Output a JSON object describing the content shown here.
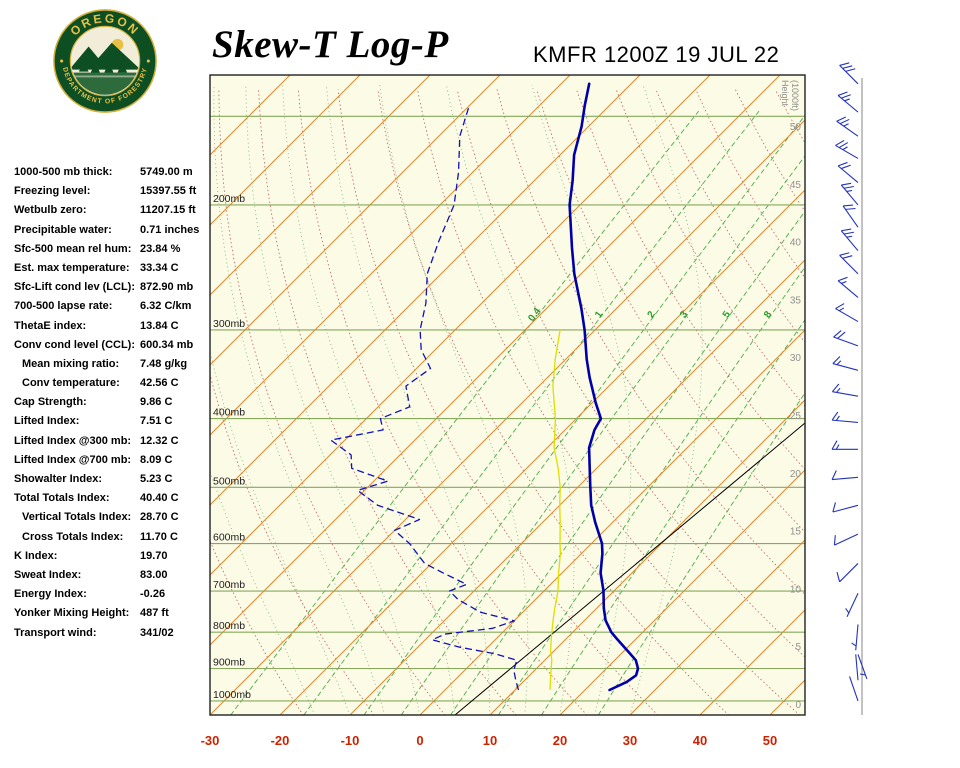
{
  "header": {
    "title": "Skew-T Log-P",
    "station_line": "KMFR 1200Z 19 JUL 22",
    "logo": {
      "top_text": "OREGON",
      "bottom_text": "DEPARTMENT OF FORESTRY"
    }
  },
  "stats": [
    {
      "label": "1000-500 mb thick:",
      "value": "5749.00 m",
      "indent": false
    },
    {
      "label": "Freezing level:",
      "value": "15397.55 ft",
      "indent": false
    },
    {
      "label": "Wetbulb zero:",
      "value": "11207.15 ft",
      "indent": false
    },
    {
      "label": "Precipitable water:",
      "value": "0.71 inches",
      "indent": false
    },
    {
      "label": "Sfc-500 mean rel hum:",
      "value": "23.84 %",
      "indent": false
    },
    {
      "label": "Est. max temperature:",
      "value": "33.34 C",
      "indent": false
    },
    {
      "label": "Sfc-Lift cond lev (LCL):",
      "value": "872.90 mb",
      "indent": false
    },
    {
      "label": "700-500 lapse rate:",
      "value": "6.32 C/km",
      "indent": false
    },
    {
      "label": "ThetaE index:",
      "value": "13.84 C",
      "indent": false
    },
    {
      "label": "Conv cond level (CCL):",
      "value": "600.34 mb",
      "indent": false
    },
    {
      "label": "Mean mixing ratio:",
      "value": "7.48 g/kg",
      "indent": true
    },
    {
      "label": "Conv temperature:",
      "value": "42.56 C",
      "indent": true
    },
    {
      "label": "Cap Strength:",
      "value": "9.86 C",
      "indent": false
    },
    {
      "label": "Lifted Index:",
      "value": "7.51 C",
      "indent": false
    },
    {
      "label": "Lifted Index @300 mb:",
      "value": "12.32 C",
      "indent": false
    },
    {
      "label": "Lifted Index @700 mb:",
      "value": "8.09 C",
      "indent": false
    },
    {
      "label": "Showalter Index:",
      "value": "5.23 C",
      "indent": false
    },
    {
      "label": "Total Totals Index:",
      "value": "40.40 C",
      "indent": false
    },
    {
      "label": "Vertical Totals Index:",
      "value": "28.70 C",
      "indent": true
    },
    {
      "label": "Cross Totals Index:",
      "value": "11.70 C",
      "indent": true
    },
    {
      "label": "K Index:",
      "value": "19.70",
      "indent": false
    },
    {
      "label": "Sweat Index:",
      "value": "83.00",
      "indent": false
    },
    {
      "label": "Energy Index:",
      "value": "-0.26",
      "indent": false
    },
    {
      "label": "Yonker Mixing Height:",
      "value": "487 ft",
      "indent": false
    },
    {
      "label": "Transport wind:",
      "value": "341/02",
      "indent": false
    }
  ],
  "chart_data": {
    "type": "skewt-log-p",
    "title": "Skew-T Log-P sounding KMFR 1200Z 19 JUL 22",
    "pressure_labels": [
      {
        "p": 200,
        "label": "200mb"
      },
      {
        "p": 300,
        "label": "300mb"
      },
      {
        "p": 400,
        "label": "400mb"
      },
      {
        "p": 500,
        "label": "500mb"
      },
      {
        "p": 600,
        "label": "600mb"
      },
      {
        "p": 700,
        "label": "700mb"
      },
      {
        "p": 800,
        "label": "800mb"
      },
      {
        "p": 900,
        "label": "900mb"
      },
      {
        "p": 1000,
        "label": "1000mb"
      }
    ],
    "pressure_lines_mb": [
      150,
      200,
      300,
      400,
      500,
      600,
      700,
      800,
      900,
      1000
    ],
    "temp_axis_labels_c": [
      -30,
      -20,
      -10,
      0,
      10,
      20,
      30,
      40,
      50
    ],
    "isotherm_range_c": [
      -110,
      50
    ],
    "isotherm_step_c": 10,
    "dry_adiabats_theta_c": [
      -20,
      -10,
      0,
      10,
      20,
      30,
      40,
      50,
      60,
      70,
      80,
      90,
      100,
      110,
      120,
      130,
      140,
      150,
      160,
      170,
      180
    ],
    "moist_adiabats_c": [
      -15,
      -10,
      -5,
      0,
      5,
      10,
      15,
      20,
      25,
      30
    ],
    "mixing_ratio_lines_gkg": [
      0.4,
      1,
      2,
      3,
      5,
      8,
      12,
      20
    ],
    "mixing_ratio_labels_gkg": [
      "0.4",
      "1",
      "2",
      "3",
      "5",
      "8"
    ],
    "height_axis_title_1": "Height",
    "height_axis_title_2": "(1000ft)",
    "height_labels_kft": [
      50,
      45,
      40,
      35,
      30,
      25,
      20,
      15,
      10,
      5,
      0
    ],
    "temperature_profile": [
      {
        "p": 965,
        "t": 23.5
      },
      {
        "p": 940,
        "t": 24.8
      },
      {
        "p": 920,
        "t": 25.2
      },
      {
        "p": 900,
        "t": 24.5
      },
      {
        "p": 876,
        "t": 23.0
      },
      {
        "p": 850,
        "t": 20.5
      },
      {
        "p": 820,
        "t": 17.5
      },
      {
        "p": 800,
        "t": 15.5
      },
      {
        "p": 770,
        "t": 13.0
      },
      {
        "p": 740,
        "t": 11.0
      },
      {
        "p": 700,
        "t": 8.5
      },
      {
        "p": 660,
        "t": 5.5
      },
      {
        "p": 620,
        "t": 3.0
      },
      {
        "p": 600,
        "t": 1.5
      },
      {
        "p": 560,
        "t": -2.5
      },
      {
        "p": 530,
        "t": -5.5
      },
      {
        "p": 500,
        "t": -8.2
      },
      {
        "p": 470,
        "t": -11.0
      },
      {
        "p": 440,
        "t": -14.0
      },
      {
        "p": 415,
        "t": -15.8
      },
      {
        "p": 400,
        "t": -16.5
      },
      {
        "p": 380,
        "t": -19.5
      },
      {
        "p": 350,
        "t": -24.0
      },
      {
        "p": 330,
        "t": -27.0
      },
      {
        "p": 300,
        "t": -31.5
      },
      {
        "p": 280,
        "t": -35.0
      },
      {
        "p": 250,
        "t": -41.0
      },
      {
        "p": 230,
        "t": -45.0
      },
      {
        "p": 200,
        "t": -51.5
      },
      {
        "p": 185,
        "t": -54.5
      },
      {
        "p": 170,
        "t": -58.0
      },
      {
        "p": 155,
        "t": -61.0
      },
      {
        "p": 145,
        "t": -63.5
      },
      {
        "p": 135,
        "t": -66.0
      }
    ],
    "dewpoint_profile": [
      {
        "p": 965,
        "t": 10.5
      },
      {
        "p": 940,
        "t": 9.0
      },
      {
        "p": 905,
        "t": 7.0
      },
      {
        "p": 876,
        "t": 6.0
      },
      {
        "p": 858,
        "t": 2.0
      },
      {
        "p": 840,
        "t": -4.0
      },
      {
        "p": 820,
        "t": -9.0
      },
      {
        "p": 805,
        "t": -8.0
      },
      {
        "p": 790,
        "t": -2.0
      },
      {
        "p": 771,
        "t": 0.0
      },
      {
        "p": 750,
        "t": -6.0
      },
      {
        "p": 720,
        "t": -11.0
      },
      {
        "p": 700,
        "t": -13.5
      },
      {
        "p": 685,
        "t": -12.0
      },
      {
        "p": 660,
        "t": -17.0
      },
      {
        "p": 640,
        "t": -21.0
      },
      {
        "p": 600,
        "t": -26.0
      },
      {
        "p": 575,
        "t": -30.0
      },
      {
        "p": 555,
        "t": -28.0
      },
      {
        "p": 530,
        "t": -36.0
      },
      {
        "p": 505,
        "t": -41.0
      },
      {
        "p": 490,
        "t": -38.0
      },
      {
        "p": 470,
        "t": -45.0
      },
      {
        "p": 450,
        "t": -47.0
      },
      {
        "p": 429,
        "t": -52.0
      },
      {
        "p": 415,
        "t": -46.0
      },
      {
        "p": 400,
        "t": -48.0
      },
      {
        "p": 385,
        "t": -45.5
      },
      {
        "p": 360,
        "t": -49.0
      },
      {
        "p": 340,
        "t": -48.0
      },
      {
        "p": 320,
        "t": -52.0
      },
      {
        "p": 300,
        "t": -55.0
      },
      {
        "p": 275,
        "t": -58.0
      },
      {
        "p": 250,
        "t": -62.0
      },
      {
        "p": 225,
        "t": -65.0
      },
      {
        "p": 200,
        "t": -68.0
      },
      {
        "p": 180,
        "t": -72.0
      },
      {
        "p": 160,
        "t": -77.0
      },
      {
        "p": 145,
        "t": -80.0
      }
    ],
    "wetbulb_profile": [
      {
        "p": 965,
        "t": 15.0
      },
      {
        "p": 920,
        "t": 13.0
      },
      {
        "p": 876,
        "t": 11.0
      },
      {
        "p": 850,
        "t": 9.5
      },
      {
        "p": 820,
        "t": 8.0
      },
      {
        "p": 800,
        "t": 7.0
      },
      {
        "p": 770,
        "t": 5.5
      },
      {
        "p": 740,
        "t": 4.0
      },
      {
        "p": 700,
        "t": 2.0
      },
      {
        "p": 660,
        "t": -0.5
      },
      {
        "p": 620,
        "t": -3.0
      },
      {
        "p": 600,
        "t": -4.5
      },
      {
        "p": 560,
        "t": -7.5
      },
      {
        "p": 530,
        "t": -10.0
      },
      {
        "p": 500,
        "t": -12.5
      },
      {
        "p": 470,
        "t": -15.5
      },
      {
        "p": 440,
        "t": -19.0
      },
      {
        "p": 400,
        "t": -23.0
      },
      {
        "p": 360,
        "t": -28.0
      },
      {
        "p": 330,
        "t": -31.5
      },
      {
        "p": 300,
        "t": -35.0
      }
    ],
    "wind_barbs": [
      {
        "p": 135,
        "dir": 315,
        "spd": 30
      },
      {
        "p": 148,
        "dir": 310,
        "spd": 25
      },
      {
        "p": 160,
        "dir": 305,
        "spd": 25
      },
      {
        "p": 172,
        "dir": 300,
        "spd": 25
      },
      {
        "p": 186,
        "dir": 310,
        "spd": 20
      },
      {
        "p": 200,
        "dir": 320,
        "spd": 25
      },
      {
        "p": 215,
        "dir": 325,
        "spd": 20
      },
      {
        "p": 232,
        "dir": 320,
        "spd": 25
      },
      {
        "p": 250,
        "dir": 315,
        "spd": 20
      },
      {
        "p": 270,
        "dir": 310,
        "spd": 15
      },
      {
        "p": 292,
        "dir": 300,
        "spd": 15
      },
      {
        "p": 316,
        "dir": 290,
        "spd": 20
      },
      {
        "p": 342,
        "dir": 285,
        "spd": 15
      },
      {
        "p": 372,
        "dir": 280,
        "spd": 15
      },
      {
        "p": 405,
        "dir": 275,
        "spd": 15
      },
      {
        "p": 442,
        "dir": 270,
        "spd": 15
      },
      {
        "p": 484,
        "dir": 265,
        "spd": 10
      },
      {
        "p": 530,
        "dir": 255,
        "spd": 10
      },
      {
        "p": 582,
        "dir": 245,
        "spd": 10
      },
      {
        "p": 640,
        "dir": 225,
        "spd": 10
      },
      {
        "p": 705,
        "dir": 205,
        "spd": 5
      },
      {
        "p": 780,
        "dir": 185,
        "spd": 5
      },
      {
        "p": 860,
        "dir": 160,
        "spd": 5
      },
      {
        "p": 935,
        "dir": 355,
        "spd": 3
      },
      {
        "p": 1000,
        "dir": 341,
        "spd": 2
      }
    ],
    "colors": {
      "plot_bg": "#fbfbe6",
      "pressure_line": "#86a95c",
      "isotherm": "#dd8830",
      "dry_adiabat": "#c06060",
      "moist_adiabat": "#79b079",
      "mixing_ratio": "#2e9e2e",
      "temperature_line": "#0000aa",
      "dewpoint_line": "#1111bb",
      "wetbulb_line": "#dede00",
      "reference_line": "#000000",
      "axis_label_red": "#cc2200",
      "height_label_gray": "#909090",
      "wind_barb": "#2233bb",
      "border": "#222222"
    }
  }
}
